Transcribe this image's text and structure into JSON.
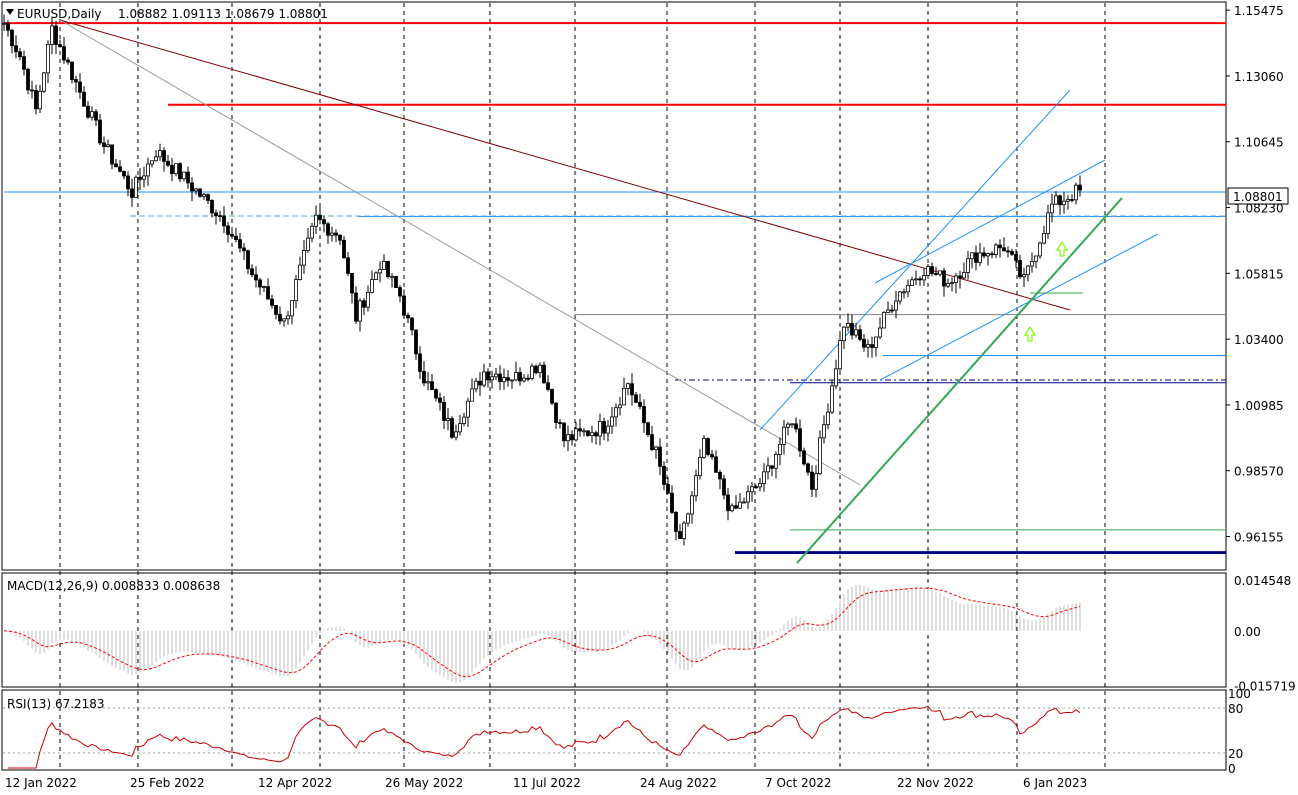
{
  "window": {
    "symbol_title": "EURUSD,Daily",
    "ohlc_text": "1.08882 1.09113 1.08679 1.08801"
  },
  "colors": {
    "resistance": "#ff0000",
    "trendline_main": "#800000",
    "channel": "#1e90ff",
    "support_green": "#32a852",
    "macd_signal": "#ff0000",
    "rsi_line": "#cc0000",
    "arrows": "#7cfc00",
    "grid": "#000000"
  },
  "chart_data": [
    {
      "type": "candlestick",
      "panel": "price",
      "title": "EURUSD,Daily",
      "ohlc_last": {
        "open": 1.08882,
        "high": 1.09113,
        "low": 1.08679,
        "close": 1.08801
      },
      "current_price_label": "1.08801",
      "y_ticks": [
        "1.15475",
        "1.13060",
        "1.10645",
        "1.08230",
        "1.05815",
        "1.03400",
        "1.00985",
        "0.98570",
        "0.96155"
      ],
      "x_ticks": [
        "12 Jan 2022",
        "25 Feb 2022",
        "12 Apr 2022",
        "26 May 2022",
        "11 Jul 2022",
        "24 Aug 2022",
        "7 Oct 2022",
        "22 Nov 2022",
        "6 Jan 2023"
      ],
      "ylim": [
        0.95,
        1.157
      ],
      "grid": "vertical dashed",
      "key_points": [
        {
          "t": 0,
          "price": 1.15
        },
        {
          "t": 4,
          "price": 1.138
        },
        {
          "t": 8,
          "price": 1.118
        },
        {
          "t": 12,
          "price": 1.148
        },
        {
          "t": 18,
          "price": 1.128
        },
        {
          "t": 25,
          "price": 1.105
        },
        {
          "t": 32,
          "price": 1.088
        },
        {
          "t": 38,
          "price": 1.103
        },
        {
          "t": 45,
          "price": 1.093
        },
        {
          "t": 55,
          "price": 1.078
        },
        {
          "t": 62,
          "price": 1.058
        },
        {
          "t": 70,
          "price": 1.04
        },
        {
          "t": 78,
          "price": 1.078
        },
        {
          "t": 84,
          "price": 1.072
        },
        {
          "t": 88,
          "price": 1.042
        },
        {
          "t": 94,
          "price": 1.062
        },
        {
          "t": 99,
          "price": 1.05
        },
        {
          "t": 105,
          "price": 1.02
        },
        {
          "t": 112,
          "price": 1.0
        },
        {
          "t": 120,
          "price": 1.022
        },
        {
          "t": 128,
          "price": 1.02
        },
        {
          "t": 134,
          "price": 1.025
        },
        {
          "t": 140,
          "price": 0.997
        },
        {
          "t": 150,
          "price": 1.002
        },
        {
          "t": 156,
          "price": 1.018
        },
        {
          "t": 163,
          "price": 0.992
        },
        {
          "t": 169,
          "price": 0.958
        },
        {
          "t": 175,
          "price": 0.995
        },
        {
          "t": 182,
          "price": 0.97
        },
        {
          "t": 190,
          "price": 0.983
        },
        {
          "t": 197,
          "price": 1.005
        },
        {
          "t": 202,
          "price": 0.98
        },
        {
          "t": 210,
          "price": 1.04
        },
        {
          "t": 216,
          "price": 1.03
        },
        {
          "t": 223,
          "price": 1.05
        },
        {
          "t": 230,
          "price": 1.06
        },
        {
          "t": 236,
          "price": 1.055
        },
        {
          "t": 243,
          "price": 1.065
        },
        {
          "t": 250,
          "price": 1.068
        },
        {
          "t": 255,
          "price": 1.055
        },
        {
          "t": 262,
          "price": 1.083
        },
        {
          "t": 268,
          "price": 1.088
        }
      ],
      "horizontal_levels": [
        {
          "price": 1.15,
          "color": "resistance"
        },
        {
          "price": 1.12,
          "color": "resistance"
        },
        {
          "price": 1.088,
          "color": "channel"
        },
        {
          "price": 1.079,
          "color": "channel"
        },
        {
          "price": 1.043,
          "color": "grey"
        },
        {
          "price": 1.028,
          "color": "channel"
        },
        {
          "price": 1.018,
          "color": "navy"
        },
        {
          "price": 0.964,
          "color": "support_green"
        },
        {
          "price": 0.956,
          "color": "navy"
        }
      ]
    },
    {
      "type": "histogram+line",
      "panel": "macd",
      "title": "MACD(12,26,9) 0.008833 0.008638",
      "y_ticks": [
        "0.014548",
        "0.00",
        "-0.015719"
      ],
      "ylim": [
        -0.0158,
        0.016
      ]
    },
    {
      "type": "line",
      "panel": "rsi",
      "title": "RSI(13) 67.2183",
      "y_ticks": [
        "100",
        "80",
        "20",
        "0"
      ],
      "ylim": [
        0,
        100
      ],
      "levels": [
        80,
        20
      ]
    }
  ]
}
